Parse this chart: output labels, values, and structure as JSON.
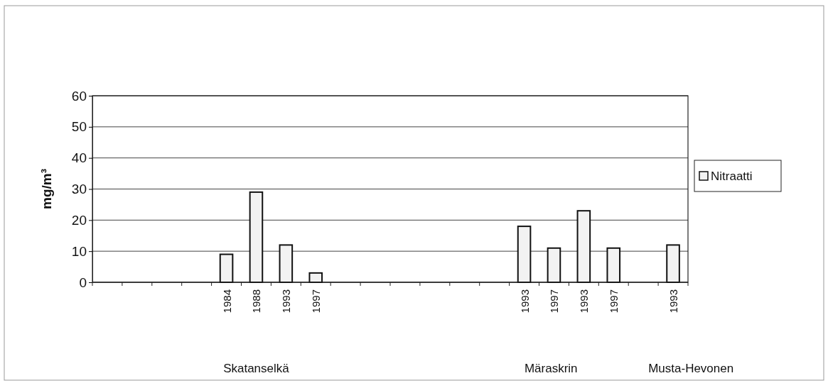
{
  "chart_data": {
    "type": "bar",
    "ylabel": "mg/m³",
    "categories": [
      null,
      null,
      null,
      null,
      "1984",
      "1988",
      "1993",
      "1997",
      null,
      null,
      null,
      null,
      null,
      null,
      "1993",
      "1997",
      "1993",
      "1997",
      null,
      "1993"
    ],
    "series": [
      {
        "name": "Nitraatti",
        "color": "#f2f2f2",
        "values": [
          null,
          null,
          null,
          null,
          9,
          29,
          12,
          3,
          null,
          null,
          null,
          null,
          null,
          null,
          18,
          11,
          23,
          11,
          null,
          12
        ]
      }
    ],
    "ylim": [
      0,
      60
    ],
    "yticks": [
      0,
      10,
      20,
      30,
      40,
      50,
      60
    ],
    "grid": "y",
    "legend": "right",
    "annotations": [
      "Skatanselkä",
      "Märaskrin",
      "Musta-Hevonen"
    ]
  }
}
